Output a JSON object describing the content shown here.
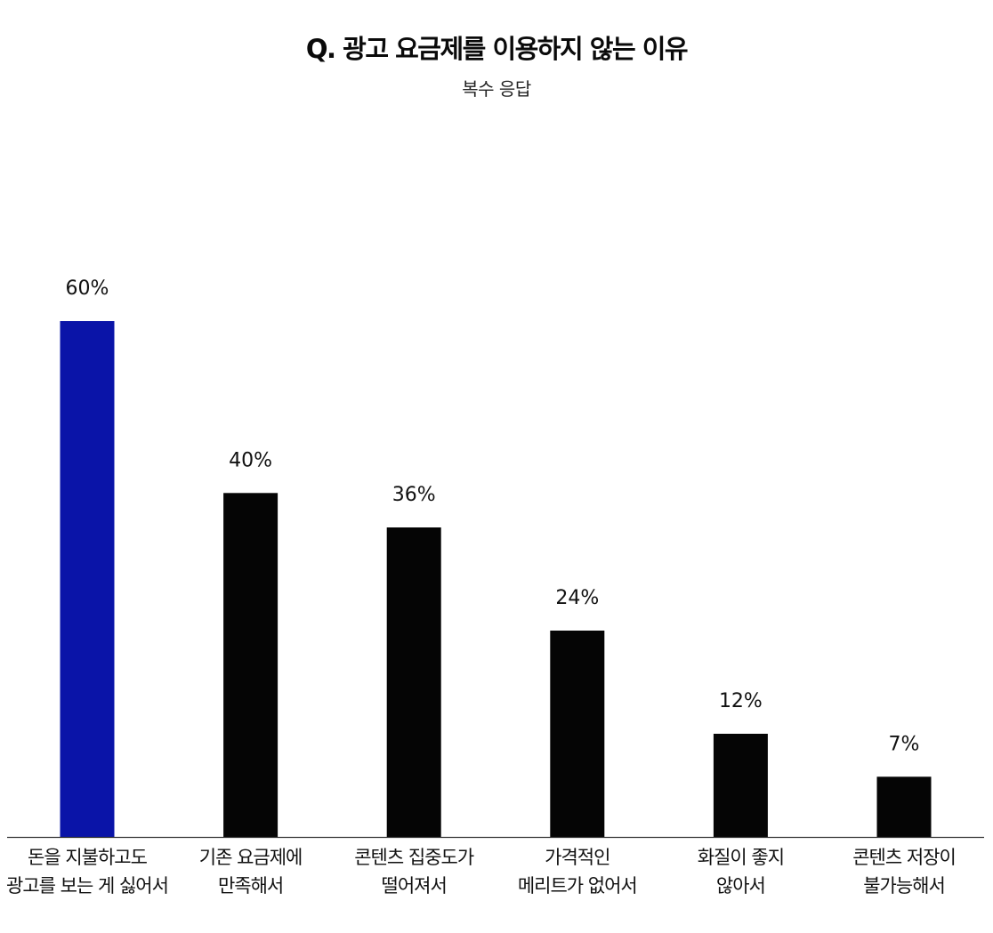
{
  "chart_data": {
    "type": "bar",
    "title": "Q. 광고 요금제를 이용하지 않는 이유",
    "subtitle": "복수 응답",
    "categories": [
      [
        "돈을 지불하고도",
        "광고를 보는 게 싫어서"
      ],
      [
        "기존 요금제에",
        "만족해서"
      ],
      [
        "콘텐츠 집중도가",
        "떨어져서"
      ],
      [
        "가격적인",
        "메리트가 없어서"
      ],
      [
        "화질이 좋지",
        "않아서"
      ],
      [
        "콘텐츠 저장이",
        "불가능해서"
      ]
    ],
    "values": [
      60,
      40,
      36,
      24,
      12,
      7
    ],
    "value_labels": [
      "60%",
      "40%",
      "36%",
      "24%",
      "12%",
      "7%"
    ],
    "ylim": [
      0,
      60
    ],
    "xlabel": "",
    "ylabel": "",
    "grid": false,
    "colors": {
      "highlight": "#0a14a8",
      "default": "#050505",
      "axis": "#333333"
    },
    "highlight_index": 0
  }
}
